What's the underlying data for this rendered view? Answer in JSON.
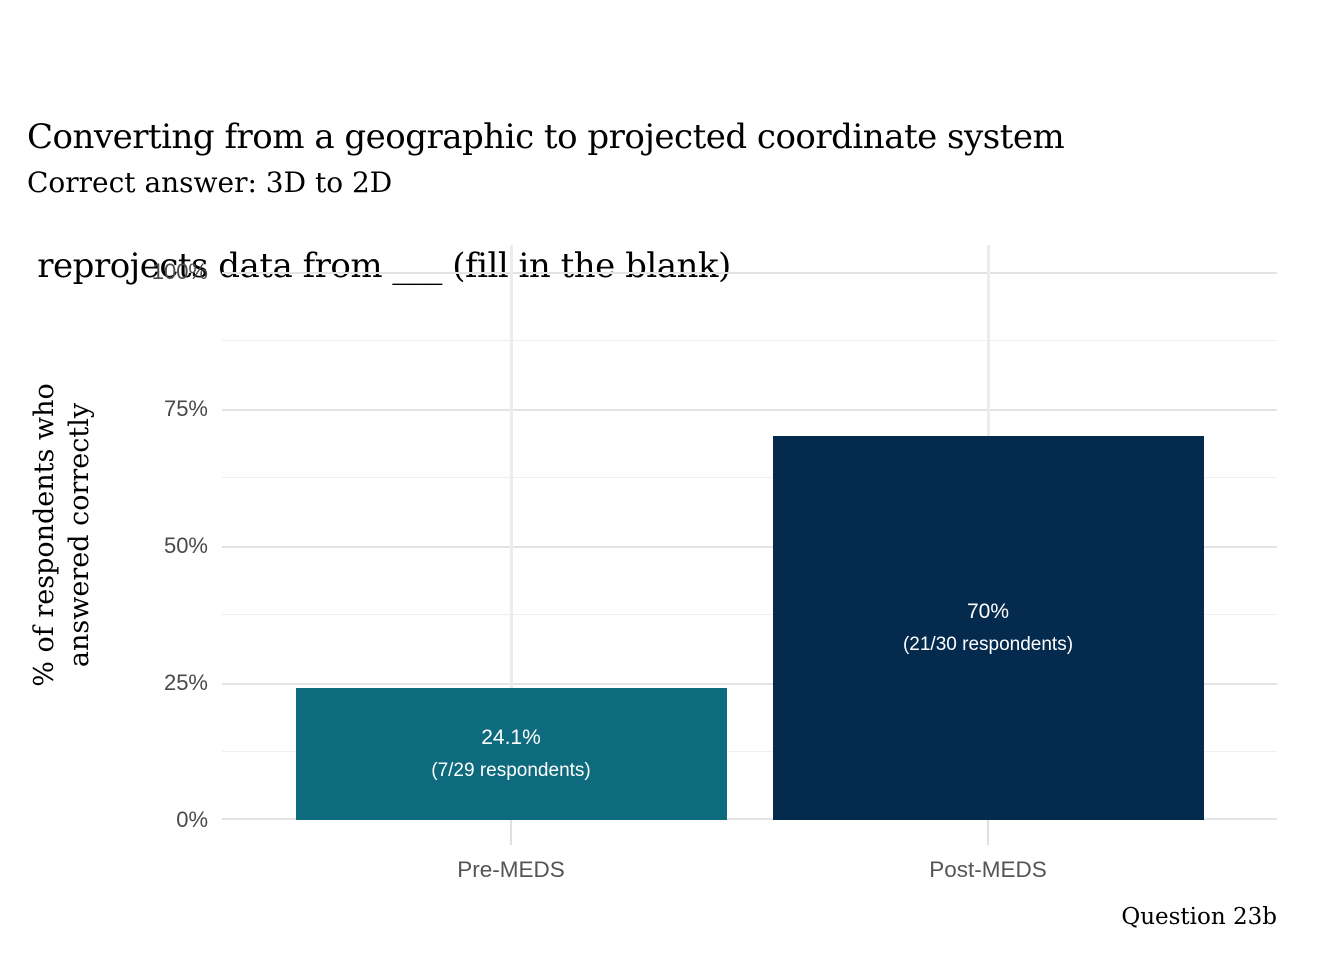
{
  "chart_data": {
    "type": "bar",
    "title": {
      "line1": "Converting from a geographic to projected coordinate system",
      "line2": " reprojects data from ___ (fill in the blank)"
    },
    "subtitle": "Correct answer: 3D to 2D",
    "caption": "Question 23b",
    "ylabel": {
      "line1": "% of respondents who",
      "line2": "answered correctly"
    },
    "categories": [
      "Pre-MEDS",
      "Post-MEDS"
    ],
    "values": [
      24.1,
      70
    ],
    "bars": [
      {
        "category": "Pre-MEDS",
        "value": 24.1,
        "pct_label": "24.1%",
        "count_label": "(7/29 respondents)",
        "color": "#0E6A7D"
      },
      {
        "category": "Post-MEDS",
        "value": 70,
        "pct_label": "70%",
        "count_label": "(21/30 respondents)",
        "color": "#042A4D"
      }
    ],
    "ylim": [
      0,
      100
    ],
    "ytick_values": [
      0,
      25,
      50,
      75,
      100
    ],
    "ytick_labels": [
      "0%",
      "25%",
      "50%",
      "75%",
      "100%"
    ],
    "ytick_minor_values": [
      12.5,
      37.5,
      62.5,
      87.5
    ],
    "grid": true,
    "legend": false,
    "colors": {
      "pre_meds_bar": "#0E6A7D",
      "post_meds_bar": "#042A4D",
      "grid_major": "#e3e3e3",
      "grid_minor": "#efefef",
      "axis_text": "#4a4a4a",
      "bar_label_text": "#ffffff",
      "background": "#ffffff"
    }
  }
}
